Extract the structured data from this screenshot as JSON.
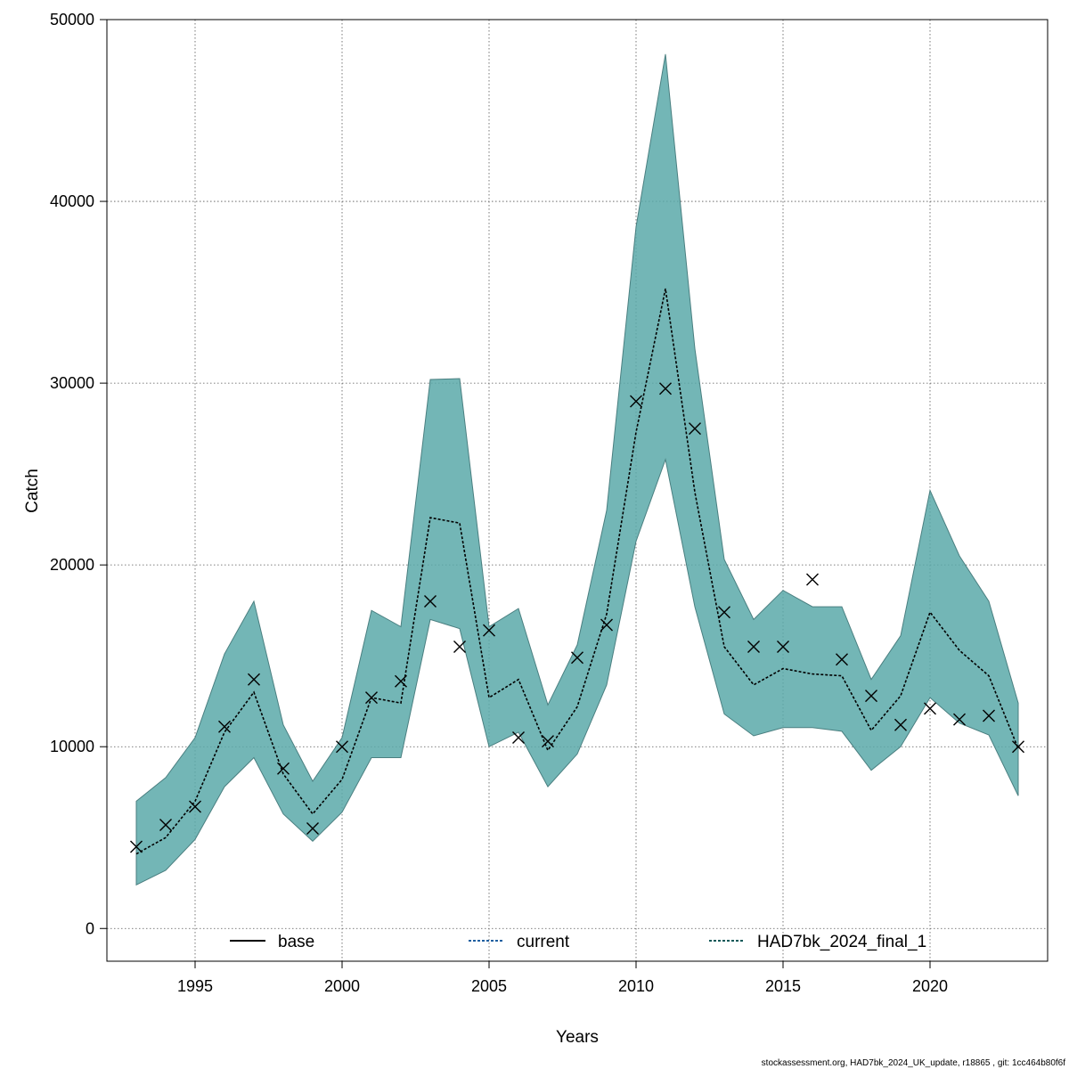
{
  "chart_data": {
    "type": "line",
    "xlabel": "Years",
    "ylabel": "Catch",
    "xlim": [
      1992,
      2024
    ],
    "ylim": [
      -1800,
      50000
    ],
    "xticks": [
      1995,
      2000,
      2005,
      2010,
      2015,
      2020
    ],
    "yticks": [
      0,
      10000,
      20000,
      30000,
      40000,
      50000
    ],
    "grid": true,
    "x": [
      1993,
      1994,
      1995,
      1996,
      1997,
      1998,
      1999,
      2000,
      2001,
      2002,
      2003,
      2004,
      2005,
      2006,
      2007,
      2008,
      2009,
      2010,
      2011,
      2012,
      2013,
      2014,
      2015,
      2016,
      2017,
      2018,
      2019,
      2020,
      2021,
      2022,
      2023
    ],
    "band": {
      "color": "#5aa9a9",
      "lower": [
        2400,
        3200,
        4900,
        7800,
        9400,
        6300,
        4800,
        6400,
        9400,
        9400,
        17000,
        16500,
        10000,
        10800,
        7800,
        9600,
        13400,
        21300,
        25800,
        17700,
        11800,
        10600,
        11050,
        11050,
        10850,
        8700,
        10000,
        12700,
        11300,
        10650,
        7300
      ],
      "upper": [
        7000,
        8300,
        10500,
        15100,
        18000,
        11200,
        8100,
        10500,
        17500,
        16600,
        30200,
        30250,
        16600,
        17600,
        12300,
        15600,
        23000,
        38600,
        48100,
        31900,
        20300,
        17000,
        18600,
        17700,
        17700,
        13700,
        16100,
        24100,
        20500,
        18000,
        12400
      ]
    },
    "series": [
      {
        "name": "HAD7bk_2024_final_1",
        "color": "#000000",
        "dash": "dotted",
        "values": [
          4100,
          5000,
          7000,
          10800,
          13000,
          8500,
          6300,
          8200,
          12700,
          12400,
          22600,
          22300,
          12700,
          13700,
          9800,
          12200,
          17300,
          27300,
          35200,
          24000,
          15500,
          13400,
          14300,
          14000,
          13900,
          10900,
          12800,
          17400,
          15300,
          13900,
          9900
        ]
      }
    ],
    "observed": {
      "marker": "x",
      "values": [
        4500,
        5700,
        6700,
        11100,
        13700,
        8800,
        5500,
        10000,
        12700,
        13600,
        18000,
        15500,
        16400,
        10500,
        10300,
        14900,
        16700,
        29000,
        29700,
        27500,
        17400,
        15500,
        15500,
        19200,
        14800,
        12800,
        11200,
        12100,
        11500,
        11700,
        10000
      ]
    },
    "legend": {
      "placement": "bottom",
      "entries": [
        {
          "label": "base",
          "color": "#000000",
          "dash": "solid"
        },
        {
          "label": "current",
          "color": "#1f5fa0",
          "dash": "dotted"
        },
        {
          "label": "HAD7bk_2024_final_1",
          "color": "#0d5858",
          "dash": "dotted"
        }
      ]
    }
  },
  "footer": "stockassessment.org, HAD7bk_2024_UK_update, r18865 , git: 1cc464b80f6f"
}
